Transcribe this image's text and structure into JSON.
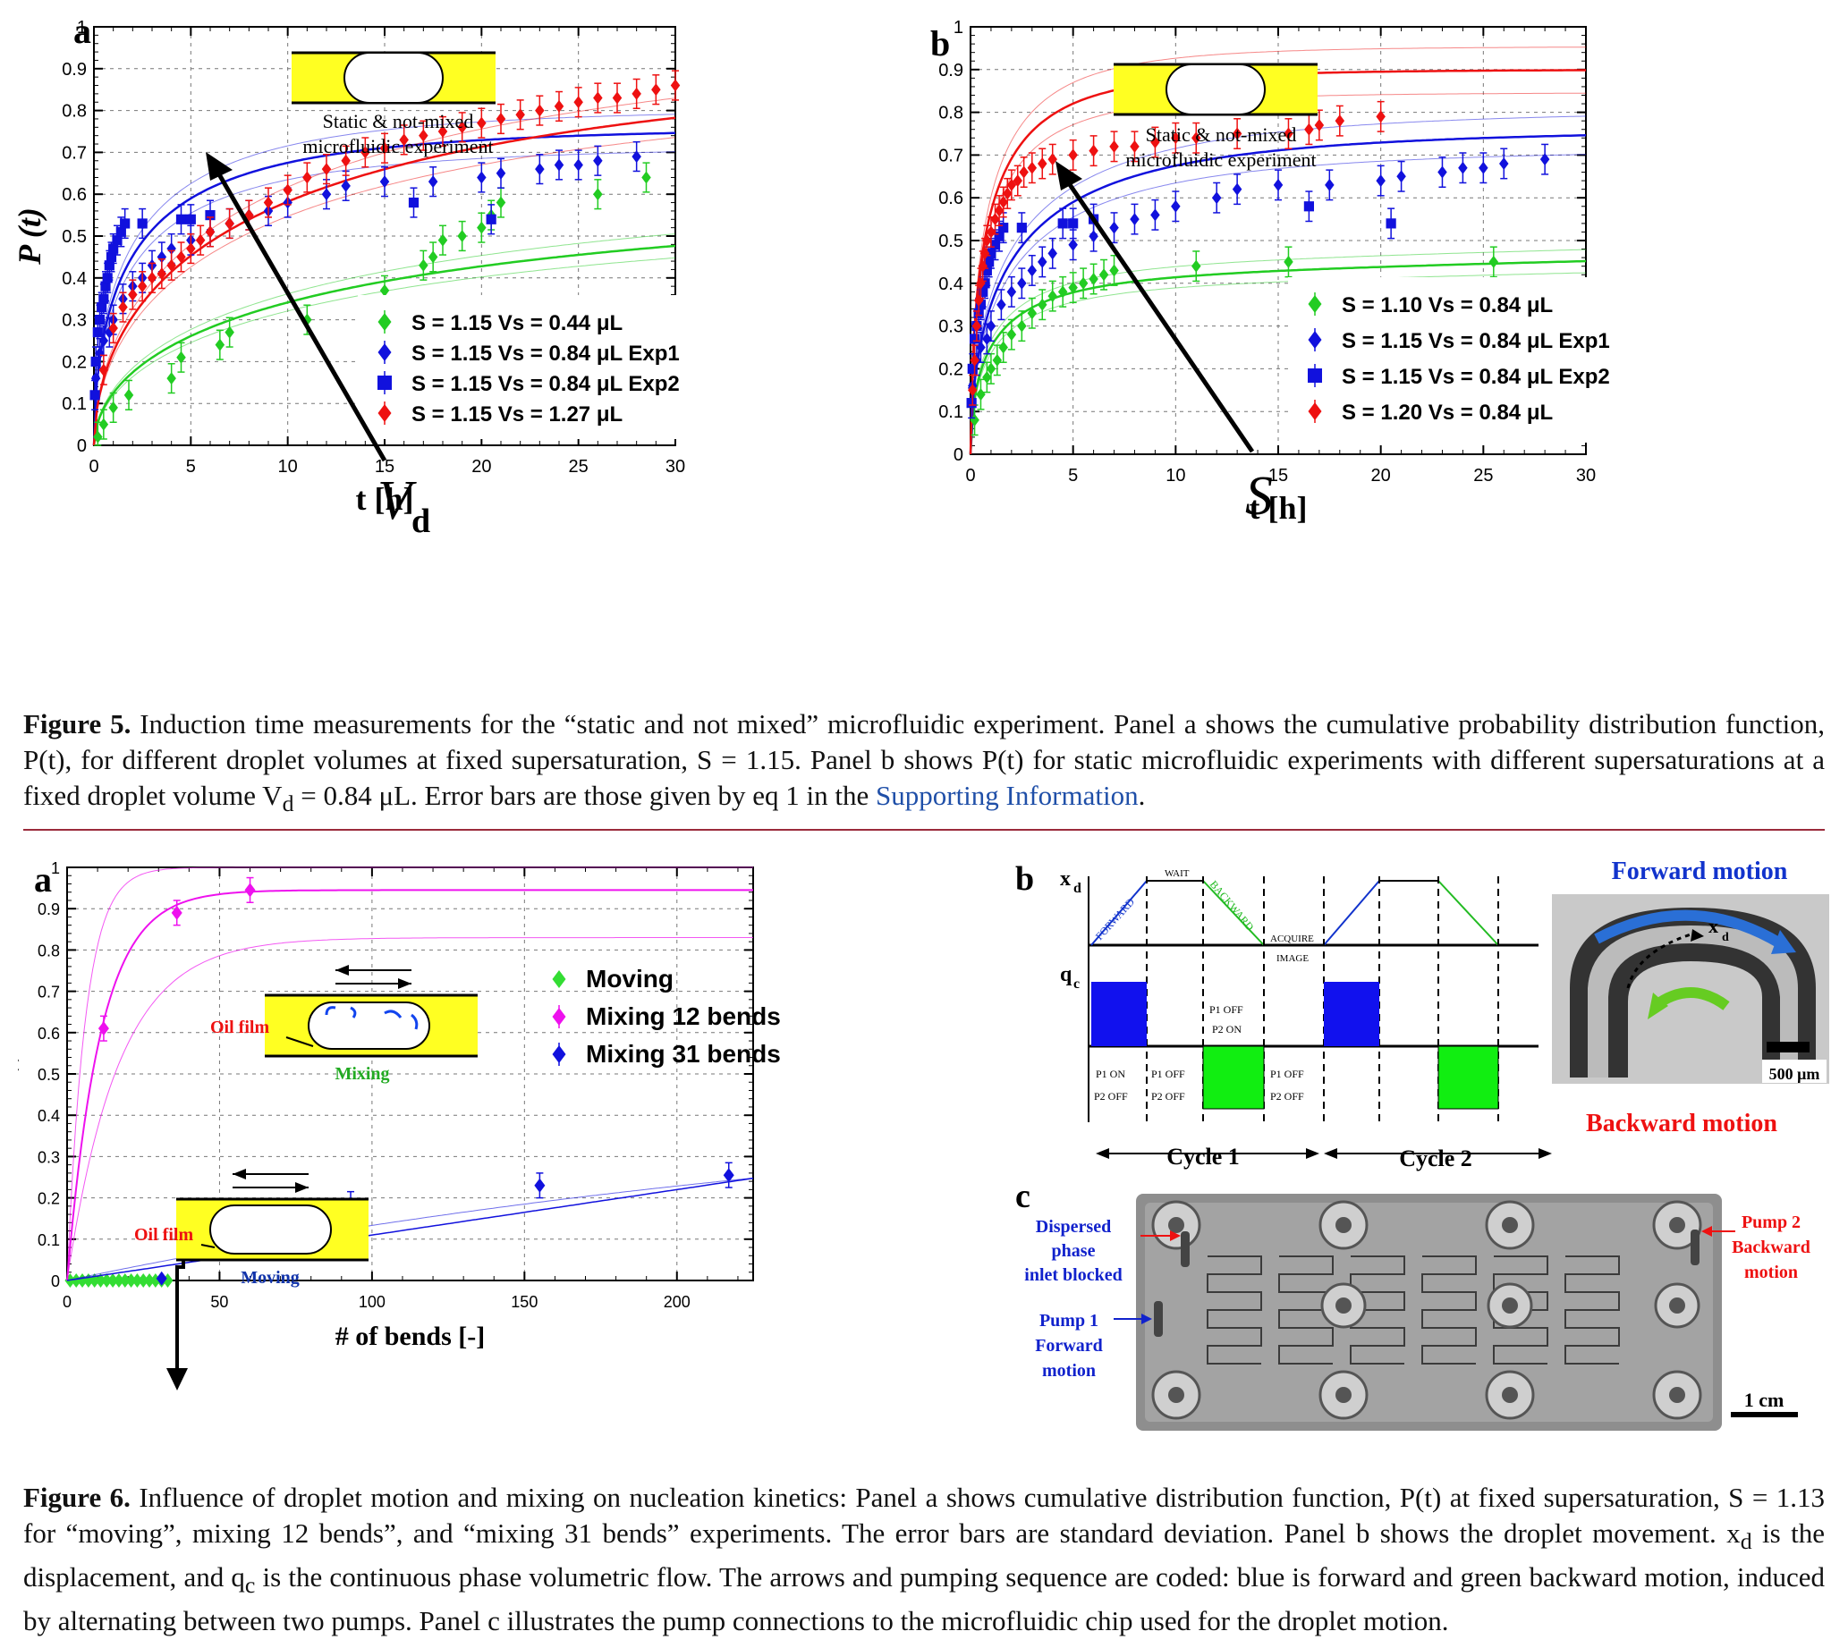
{
  "fig5": {
    "panel_a": {
      "label": "a",
      "inset_caption": [
        "Static & not-mixed",
        "microfluidic experiment"
      ],
      "arrow_label": "V",
      "arrow_label_sub": "d"
    },
    "panel_b": {
      "label": "b",
      "inset_caption": [
        "Static & not-mixed",
        "microfluidic experiment"
      ],
      "arrow_label": "S"
    },
    "caption": {
      "label": "Figure 5.",
      "text": " Induction time measurements for the “static and not mixed” microfluidic experiment. Panel a shows the cumulative probability distribution function, P(t), for different droplet volumes at fixed supersaturation, S = 1.15. Panel b shows P(t) for static microfluidic experiments with different supersaturations at a fixed droplet volume V",
      "sub": "d",
      "text2": " = 0.84 μL. Error bars are those given by eq 1 in the ",
      "link": "Supporting Information",
      "end": "."
    }
  },
  "fig6": {
    "panel_a": {
      "label": "a",
      "inset_top": {
        "oil": "Oil film",
        "caption": "Mixing"
      },
      "inset_bottom": {
        "oil": "Oil film",
        "caption": "Moving"
      }
    },
    "panel_b": {
      "label": "b",
      "y1": "x",
      "y1_sub": "d",
      "y2": "q",
      "y2_sub": "c",
      "phases": [
        "FORWARD",
        "WAIT",
        "BACKWARD",
        "ACQUIRE",
        "IMAGE"
      ],
      "p1off_p2on": [
        "P1 OFF",
        "P2 ON"
      ],
      "states": [
        [
          "P1 ON",
          "P2 OFF"
        ],
        [
          "P1 OFF",
          "P2 OFF"
        ],
        [
          "P1 OFF",
          "P2 OFF"
        ]
      ],
      "cycles": [
        "Cycle 1",
        "Cycle 2"
      ],
      "photo": {
        "top": "Forward motion",
        "bottom": "Backward motion",
        "marker": "x",
        "marker_sub": "d",
        "scale": "500 μm"
      }
    },
    "panel_c": {
      "label": "c",
      "left_top": [
        "Dispersed",
        "phase",
        "inlet blocked"
      ],
      "left_bottom": [
        "Pump 1",
        "Forward",
        "motion"
      ],
      "right": [
        "Pump 2",
        "Backward",
        "motion"
      ],
      "scale": "1 cm"
    },
    "caption": {
      "label": "Figure 6.",
      "text": " Influence of droplet motion and mixing on nucleation kinetics: Panel a shows cumulative distribution function, P(t) at fixed supersaturation, S = 1.13 for “moving”, mixing 12 bends”, and “mixing 31 bends” experiments. The error bars are standard deviation. Panel b shows the droplet movement. x",
      "sub1": "d",
      "text2": " is the displacement, and q",
      "sub2": "c",
      "text3": " is the continuous phase volumetric flow. The arrows and pumping sequence are coded: blue is forward and green backward motion, induced by alternating between two pumps. Panel c illustrates the pump connections to the microfluidic chip used for the droplet motion."
    }
  },
  "chart_data": [
    {
      "id": "fig5a",
      "type": "scatter",
      "xlabel": "t [h]",
      "ylabel": "P (t)",
      "xlim": [
        0,
        30
      ],
      "ylim": [
        0,
        1
      ],
      "xticks": [
        0,
        5,
        10,
        15,
        20,
        25,
        30
      ],
      "yticks": [
        0,
        0.1,
        0.2,
        0.3,
        0.4,
        0.5,
        0.6,
        0.7,
        0.8,
        0.9,
        1
      ],
      "legend_position": "bottom-right",
      "series": [
        {
          "name": "S = 1.15   V_s = 0.44 μL",
          "color": "#22cc22",
          "marker": "diamond",
          "x": [
            0.2,
            0.5,
            1,
            1.8,
            4,
            4.5,
            6.5,
            7,
            11,
            15,
            17,
            17.5,
            18,
            19,
            20,
            20.5,
            21,
            26,
            28.5
          ],
          "y": [
            0.02,
            0.05,
            0.09,
            0.12,
            0.16,
            0.21,
            0.24,
            0.27,
            0.3,
            0.37,
            0.43,
            0.45,
            0.49,
            0.5,
            0.52,
            0.55,
            0.58,
            0.6,
            0.64
          ],
          "fit": {
            "a": 0.62,
            "t0": 15
          }
        },
        {
          "name": "S = 1.15   V_s = 0.84 μL Exp1",
          "color": "#1111dd",
          "marker": "diamond",
          "x": [
            0.1,
            0.3,
            0.5,
            0.8,
            1,
            1.5,
            2,
            2.5,
            3,
            3.5,
            4,
            5,
            6,
            7,
            8,
            9,
            10,
            12,
            13,
            15,
            17.5,
            20,
            21,
            23,
            24,
            25,
            26,
            28
          ],
          "y": [
            0.16,
            0.22,
            0.25,
            0.27,
            0.3,
            0.35,
            0.38,
            0.4,
            0.43,
            0.45,
            0.47,
            0.49,
            0.51,
            0.53,
            0.55,
            0.56,
            0.58,
            0.6,
            0.62,
            0.63,
            0.63,
            0.64,
            0.65,
            0.66,
            0.67,
            0.67,
            0.68,
            0.69
          ],
          "fit": {
            "a": 0.76,
            "t0": 2.4
          }
        },
        {
          "name": "S = 1.15   V_s = 0.84 μL Exp2",
          "color": "#1111dd",
          "marker": "square",
          "x": [
            0.05,
            0.1,
            0.2,
            0.3,
            0.4,
            0.5,
            0.6,
            0.7,
            0.8,
            0.9,
            1,
            1.2,
            1.4,
            1.6,
            2.5,
            4.5,
            5,
            6,
            16.5,
            20.5
          ],
          "y": [
            0.12,
            0.2,
            0.27,
            0.3,
            0.33,
            0.35,
            0.38,
            0.4,
            0.43,
            0.45,
            0.47,
            0.49,
            0.51,
            0.53,
            0.53,
            0.54,
            0.54,
            0.55,
            0.58,
            0.54
          ],
          "fit": null
        },
        {
          "name": "S = 1.15   V_s = 1.27 μL",
          "color": "#ee1111",
          "marker": "diamond",
          "x": [
            0.5,
            1,
            1.5,
            2,
            2.5,
            3,
            3.5,
            4,
            4.5,
            5,
            5.5,
            6,
            7,
            8,
            9,
            10,
            11,
            12,
            13,
            14,
            15,
            16,
            17,
            18,
            19,
            20,
            21,
            22,
            23,
            24,
            25,
            26,
            27,
            28,
            29,
            30
          ],
          "y": [
            0.18,
            0.28,
            0.33,
            0.36,
            0.38,
            0.4,
            0.41,
            0.43,
            0.45,
            0.47,
            0.49,
            0.51,
            0.53,
            0.55,
            0.58,
            0.61,
            0.64,
            0.66,
            0.68,
            0.7,
            0.71,
            0.73,
            0.74,
            0.75,
            0.76,
            0.77,
            0.78,
            0.79,
            0.8,
            0.81,
            0.82,
            0.83,
            0.83,
            0.84,
            0.85,
            0.86
          ],
          "fit": {
            "a": 0.95,
            "t0": 11
          }
        }
      ]
    },
    {
      "id": "fig5b",
      "type": "scatter",
      "xlabel": "t [h]",
      "ylabel": "P (t)",
      "xlim": [
        0,
        30
      ],
      "ylim": [
        0,
        1
      ],
      "xticks": [
        0,
        5,
        10,
        15,
        20,
        25,
        30
      ],
      "yticks": [
        0,
        0.1,
        0.2,
        0.3,
        0.4,
        0.5,
        0.6,
        0.7,
        0.8,
        0.9,
        1
      ],
      "legend_position": "bottom-right",
      "series": [
        {
          "name": "S = 1.10   V_s = 0.84 μL",
          "color": "#22cc22",
          "marker": "diamond",
          "x": [
            0.2,
            0.5,
            0.8,
            1,
            1.3,
            1.6,
            2,
            2.5,
            3,
            3.5,
            4,
            4.5,
            5,
            5.5,
            6,
            6.5,
            7,
            11,
            15.5,
            25.5
          ],
          "y": [
            0.08,
            0.14,
            0.18,
            0.2,
            0.22,
            0.25,
            0.28,
            0.3,
            0.33,
            0.35,
            0.37,
            0.38,
            0.39,
            0.4,
            0.41,
            0.42,
            0.43,
            0.44,
            0.45,
            0.45
          ],
          "fit": {
            "a": 0.42,
            "t0": 1.2,
            "plus": 0.0011
          }
        },
        {
          "name": "S = 1.15   V_s = 0.84 μL Exp1",
          "color": "#1111dd",
          "marker": "diamond",
          "x": [
            0.1,
            0.3,
            0.5,
            0.8,
            1,
            1.5,
            2,
            2.5,
            3,
            3.5,
            4,
            5,
            6,
            7,
            8,
            9,
            10,
            12,
            13,
            15,
            17.5,
            20,
            21,
            23,
            24,
            25,
            26,
            28
          ],
          "y": [
            0.16,
            0.22,
            0.25,
            0.27,
            0.3,
            0.35,
            0.38,
            0.4,
            0.43,
            0.45,
            0.47,
            0.49,
            0.51,
            0.53,
            0.55,
            0.56,
            0.58,
            0.6,
            0.62,
            0.63,
            0.63,
            0.64,
            0.65,
            0.66,
            0.67,
            0.67,
            0.68,
            0.69
          ],
          "fit": {
            "a": 0.76,
            "t0": 2.4
          }
        },
        {
          "name": "S = 1.15   V_s = 0.84 μL Exp2",
          "color": "#1111dd",
          "marker": "square",
          "x": [
            0.05,
            0.1,
            0.2,
            0.3,
            0.4,
            0.5,
            0.6,
            0.7,
            0.8,
            0.9,
            1,
            1.2,
            1.4,
            1.6,
            2.5,
            4.5,
            5,
            6,
            16.5,
            20.5
          ],
          "y": [
            0.12,
            0.2,
            0.27,
            0.3,
            0.33,
            0.35,
            0.38,
            0.4,
            0.43,
            0.45,
            0.47,
            0.49,
            0.51,
            0.53,
            0.53,
            0.54,
            0.54,
            0.55,
            0.58,
            0.54
          ],
          "fit": null
        },
        {
          "name": "S = 1.20   V_s = 0.84 μL",
          "color": "#ee1111",
          "marker": "diamond",
          "x": [
            0.1,
            0.2,
            0.3,
            0.4,
            0.5,
            0.6,
            0.7,
            0.8,
            1,
            1.2,
            1.4,
            1.6,
            1.8,
            2,
            2.3,
            2.6,
            3,
            3.5,
            4,
            5,
            6,
            7,
            8,
            9,
            10,
            11,
            13,
            15.5,
            16.5,
            17,
            18,
            20
          ],
          "y": [
            0.15,
            0.22,
            0.3,
            0.36,
            0.4,
            0.44,
            0.47,
            0.5,
            0.52,
            0.55,
            0.57,
            0.59,
            0.61,
            0.63,
            0.64,
            0.66,
            0.67,
            0.68,
            0.69,
            0.7,
            0.71,
            0.72,
            0.72,
            0.73,
            0.74,
            0.74,
            0.75,
            0.75,
            0.76,
            0.77,
            0.78,
            0.79
          ],
          "fit": {
            "a": 0.9,
            "t0": 1.0,
            "plus": 0.0
          }
        }
      ]
    },
    {
      "id": "fig6a",
      "type": "scatter",
      "xlabel": "# of bends [-]",
      "ylabel": "P (t)",
      "xlim": [
        0,
        225
      ],
      "ylim": [
        0,
        1
      ],
      "xticks": [
        0,
        50,
        100,
        150,
        200
      ],
      "yticks": [
        0,
        0.1,
        0.2,
        0.3,
        0.4,
        0.5,
        0.6,
        0.7,
        0.8,
        0.9,
        1
      ],
      "legend_position": "top-right",
      "series": [
        {
          "name": "Moving",
          "color": "#33dd33",
          "marker": "diamond",
          "x": [
            1,
            3,
            5,
            7,
            9,
            11,
            13,
            15,
            17,
            19,
            21,
            23,
            25,
            27,
            29,
            31,
            33
          ],
          "y": [
            0,
            0,
            0,
            0,
            0,
            0,
            0,
            0,
            0,
            0,
            0,
            0,
            0,
            0,
            0,
            0,
            0
          ]
        },
        {
          "name": "Mixing 12 bends",
          "color": "#ee11ee",
          "marker": "diamond",
          "x": [
            12,
            36,
            60
          ],
          "y": [
            0.61,
            0.89,
            0.945
          ]
        },
        {
          "name": "Mixing 31 bends",
          "color": "#1111dd",
          "marker": "diamond",
          "x": [
            31,
            93,
            155,
            217
          ],
          "y": [
            0.005,
            0.185,
            0.23,
            0.255
          ]
        }
      ]
    }
  ]
}
